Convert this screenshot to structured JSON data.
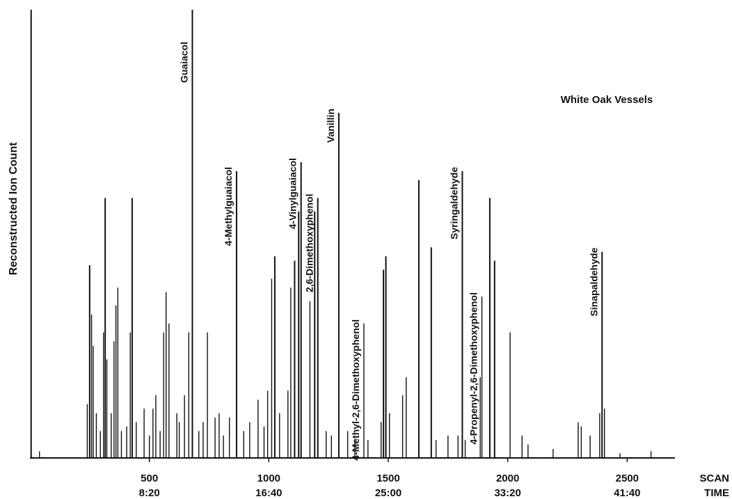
{
  "chart_data": {
    "type": "line",
    "title": "White Oak Vessels",
    "ylabel": "Reconstructed Ion Count",
    "xlabel": "SCAN",
    "x2label": "TIME",
    "xlim": [
      0,
      2700
    ],
    "ylim": [
      0,
      100
    ],
    "xticks": [
      {
        "scan": 500,
        "time": "8:20"
      },
      {
        "scan": 1000,
        "time": "16:40"
      },
      {
        "scan": 1500,
        "time": "25:00"
      },
      {
        "scan": 2000,
        "time": "33:20"
      },
      {
        "scan": 2500,
        "time": "41:40"
      }
    ],
    "peaks": [
      {
        "x": 5,
        "y": 100
      },
      {
        "x": 40,
        "y": 1.5
      },
      {
        "x": 240,
        "y": 12
      },
      {
        "x": 250,
        "y": 43
      },
      {
        "x": 258,
        "y": 32
      },
      {
        "x": 265,
        "y": 25
      },
      {
        "x": 278,
        "y": 10
      },
      {
        "x": 295,
        "y": 6
      },
      {
        "x": 308,
        "y": 28
      },
      {
        "x": 315,
        "y": 58
      },
      {
        "x": 322,
        "y": 22
      },
      {
        "x": 340,
        "y": 10
      },
      {
        "x": 352,
        "y": 26
      },
      {
        "x": 360,
        "y": 34
      },
      {
        "x": 368,
        "y": 38
      },
      {
        "x": 383,
        "y": 6
      },
      {
        "x": 405,
        "y": 7
      },
      {
        "x": 420,
        "y": 28
      },
      {
        "x": 428,
        "y": 58
      },
      {
        "x": 445,
        "y": 8
      },
      {
        "x": 478,
        "y": 11
      },
      {
        "x": 500,
        "y": 5
      },
      {
        "x": 515,
        "y": 11
      },
      {
        "x": 527,
        "y": 14
      },
      {
        "x": 545,
        "y": 6
      },
      {
        "x": 560,
        "y": 28
      },
      {
        "x": 570,
        "y": 37
      },
      {
        "x": 582,
        "y": 30
      },
      {
        "x": 615,
        "y": 10
      },
      {
        "x": 625,
        "y": 8
      },
      {
        "x": 647,
        "y": 14
      },
      {
        "x": 665,
        "y": 28
      },
      {
        "x": 680,
        "y": 100
      },
      {
        "x": 707,
        "y": 6
      },
      {
        "x": 725,
        "y": 8
      },
      {
        "x": 743,
        "y": 28
      },
      {
        "x": 775,
        "y": 9
      },
      {
        "x": 792,
        "y": 10
      },
      {
        "x": 810,
        "y": 5
      },
      {
        "x": 835,
        "y": 9
      },
      {
        "x": 865,
        "y": 64
      },
      {
        "x": 895,
        "y": 6
      },
      {
        "x": 920,
        "y": 8
      },
      {
        "x": 955,
        "y": 13
      },
      {
        "x": 980,
        "y": 7
      },
      {
        "x": 995,
        "y": 15
      },
      {
        "x": 1012,
        "y": 40
      },
      {
        "x": 1025,
        "y": 45
      },
      {
        "x": 1045,
        "y": 10
      },
      {
        "x": 1080,
        "y": 15
      },
      {
        "x": 1092,
        "y": 38
      },
      {
        "x": 1108,
        "y": 44
      },
      {
        "x": 1125,
        "y": 55
      },
      {
        "x": 1135,
        "y": 66
      },
      {
        "x": 1172,
        "y": 35
      },
      {
        "x": 1192,
        "y": 55
      },
      {
        "x": 1205,
        "y": 58
      },
      {
        "x": 1240,
        "y": 6
      },
      {
        "x": 1262,
        "y": 5
      },
      {
        "x": 1293,
        "y": 77
      },
      {
        "x": 1330,
        "y": 6
      },
      {
        "x": 1360,
        "y": 4
      },
      {
        "x": 1398,
        "y": 30
      },
      {
        "x": 1415,
        "y": 4
      },
      {
        "x": 1470,
        "y": 8
      },
      {
        "x": 1480,
        "y": 42
      },
      {
        "x": 1490,
        "y": 45
      },
      {
        "x": 1505,
        "y": 10
      },
      {
        "x": 1560,
        "y": 14
      },
      {
        "x": 1575,
        "y": 18
      },
      {
        "x": 1628,
        "y": 62
      },
      {
        "x": 1680,
        "y": 47
      },
      {
        "x": 1700,
        "y": 4
      },
      {
        "x": 1750,
        "y": 5
      },
      {
        "x": 1792,
        "y": 5
      },
      {
        "x": 1810,
        "y": 64
      },
      {
        "x": 1822,
        "y": 4
      },
      {
        "x": 1885,
        "y": 18
      },
      {
        "x": 1892,
        "y": 36
      },
      {
        "x": 1925,
        "y": 58
      },
      {
        "x": 1945,
        "y": 44
      },
      {
        "x": 2010,
        "y": 28
      },
      {
        "x": 2060,
        "y": 5
      },
      {
        "x": 2085,
        "y": 3
      },
      {
        "x": 2190,
        "y": 2
      },
      {
        "x": 2295,
        "y": 8
      },
      {
        "x": 2308,
        "y": 7
      },
      {
        "x": 2345,
        "y": 5
      },
      {
        "x": 2385,
        "y": 10
      },
      {
        "x": 2395,
        "y": 46
      },
      {
        "x": 2405,
        "y": 11
      },
      {
        "x": 2470,
        "y": 1
      },
      {
        "x": 2600,
        "y": 1.5
      }
    ],
    "annotations": [
      {
        "label": "Guaiacol",
        "x": 680
      },
      {
        "label": "4-Methylguaiacol",
        "x": 865
      },
      {
        "label": "4-Vinylguaiacol",
        "x": 1135
      },
      {
        "label": "2,6-Dimethoxyphenol",
        "x": 1205
      },
      {
        "label": "Vanillin",
        "x": 1293
      },
      {
        "label": "4-Methyl-2,6-Dimethoxyphenol",
        "x": 1398
      },
      {
        "label": "Syringaldehyde",
        "x": 1810
      },
      {
        "label": "4-Propenyl-2,6-Dimethoxyphenol",
        "x": 1892
      },
      {
        "label": "Sinapaldehyde",
        "x": 2395
      }
    ]
  }
}
